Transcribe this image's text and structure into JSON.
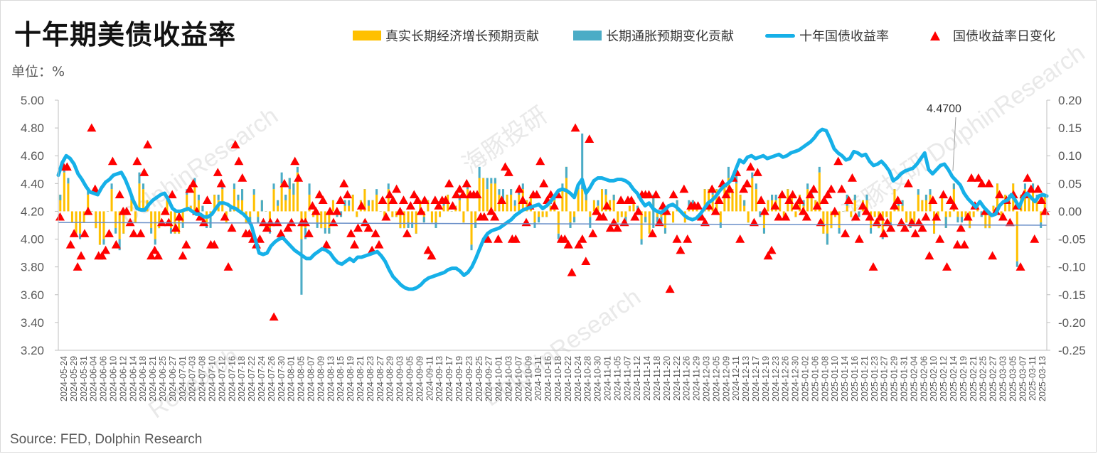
{
  "title": "十年期美债收益率",
  "unit": "单位：%",
  "source": "Source: FED, Dolphin Research",
  "colors": {
    "real": "#ffc000",
    "inflation": "#4bacc6",
    "yield": "#16b0e8",
    "marker": "#ff0000",
    "axis": "#595959"
  },
  "legend": {
    "real": "真实长期经济增长预期贡献",
    "inflation": "长期通胀预期变化贡献",
    "yield": "十年国债收益率",
    "change": "国债收益率日变化"
  },
  "callout": {
    "label": "4.4700",
    "date": "2025-02-14"
  },
  "chart_data": {
    "type": "bar",
    "left_axis": {
      "min": 3.2,
      "max": 5.0,
      "ticks": [
        "3.20",
        "3.40",
        "3.60",
        "3.80",
        "4.00",
        "4.20",
        "4.40",
        "4.60",
        "4.80",
        "5.00"
      ]
    },
    "right_axis": {
      "min": -0.25,
      "max": 0.2,
      "ticks": [
        "-0.25",
        "-0.20",
        "-0.15",
        "-0.10",
        "-0.05",
        "0.00",
        "0.05",
        "0.10",
        "0.15",
        "0.20"
      ]
    },
    "x_tick_labels": [
      "2024-05-24",
      "2024-05-29",
      "2024-05-31",
      "2024-06-04",
      "2024-06-06",
      "2024-06-10",
      "2024-06-12",
      "2024-06-14",
      "2024-06-18",
      "2024-06-21",
      "2024-06-25",
      "2024-06-27",
      "2024-07-01",
      "2024-07-03",
      "2024-07-08",
      "2024-07-10",
      "2024-07-12",
      "2024-07-16",
      "2024-07-18",
      "2024-07-22",
      "2024-07-24",
      "2024-07-26",
      "2024-07-30",
      "2024-08-01",
      "2024-08-05",
      "2024-08-07",
      "2024-08-09",
      "2024-08-13",
      "2024-08-15",
      "2024-08-19",
      "2024-08-21",
      "2024-08-23",
      "2024-08-27",
      "2024-08-29",
      "2024-09-03",
      "2024-09-05",
      "2024-09-09",
      "2024-09-11",
      "2024-09-13",
      "2024-09-17",
      "2024-09-19",
      "2024-09-23",
      "2024-09-25",
      "2024-09-27",
      "2024-10-01",
      "2024-10-03",
      "2024-10-07",
      "2024-10-09",
      "2024-10-11",
      "2024-10-16",
      "2024-10-18",
      "2024-10-22",
      "2024-10-24",
      "2024-10-28",
      "2024-10-30",
      "2024-11-01",
      "2024-11-05",
      "2024-11-07",
      "2024-11-12",
      "2024-11-14",
      "2024-11-18",
      "2024-11-20",
      "2024-11-22",
      "2024-11-26",
      "2024-11-29",
      "2024-12-03",
      "2024-12-05",
      "2024-12-09",
      "2024-12-11",
      "2024-12-13",
      "2024-12-17",
      "2024-12-19",
      "2024-12-23",
      "2024-12-26",
      "2024-12-30",
      "2025-01-02",
      "2025-01-06",
      "2025-01-08",
      "2025-01-10",
      "2025-01-14",
      "2025-01-16",
      "2025-01-21",
      "2025-01-23",
      "2025-01-27",
      "2025-01-29",
      "2025-01-31",
      "2025-02-04",
      "2025-02-06",
      "2025-02-10",
      "2025-02-12",
      "2025-02-14",
      "2025-02-19",
      "2025-02-21",
      "2025-02-25",
      "2025-02-27",
      "2025-03-03",
      "2025-03-05",
      "2025-03-07",
      "2025-03-11",
      "2025-03-13"
    ],
    "yield": [
      4.46,
      4.55,
      4.6,
      4.58,
      4.54,
      4.47,
      4.43,
      4.38,
      4.34,
      4.33,
      4.32,
      4.37,
      4.41,
      4.43,
      4.46,
      4.47,
      4.48,
      4.43,
      4.36,
      4.28,
      4.22,
      4.21,
      4.21,
      4.25,
      4.28,
      4.3,
      4.32,
      4.33,
      4.28,
      4.22,
      4.2,
      4.2,
      4.21,
      4.22,
      4.2,
      4.18,
      4.18,
      4.16,
      4.16,
      4.18,
      4.22,
      4.26,
      4.26,
      4.25,
      4.23,
      4.22,
      4.2,
      4.18,
      4.15,
      4.1,
      4.0,
      3.9,
      3.89,
      3.9,
      3.95,
      3.98,
      4.0,
      4.01,
      3.98,
      3.95,
      3.92,
      3.9,
      3.88,
      3.86,
      3.86,
      3.89,
      3.91,
      3.93,
      3.92,
      3.9,
      3.86,
      3.83,
      3.82,
      3.84,
      3.86,
      3.84,
      3.87,
      3.87,
      3.88,
      3.89,
      3.9,
      3.91,
      3.88,
      3.84,
      3.78,
      3.73,
      3.7,
      3.67,
      3.65,
      3.64,
      3.64,
      3.65,
      3.67,
      3.7,
      3.72,
      3.73,
      3.74,
      3.75,
      3.76,
      3.78,
      3.79,
      3.79,
      3.77,
      3.74,
      3.76,
      3.8,
      3.86,
      3.93,
      4.0,
      4.04,
      4.06,
      4.07,
      4.08,
      4.1,
      4.12,
      4.14,
      4.17,
      4.19,
      4.21,
      4.22,
      4.23,
      4.24,
      4.25,
      4.22,
      4.24,
      4.27,
      4.31,
      4.35,
      4.36,
      4.35,
      4.33,
      4.3,
      4.39,
      4.43,
      4.33,
      4.37,
      4.42,
      4.44,
      4.44,
      4.43,
      4.42,
      4.42,
      4.43,
      4.43,
      4.42,
      4.4,
      4.36,
      4.33,
      4.28,
      4.24,
      4.26,
      4.22,
      4.2,
      4.19,
      4.21,
      4.24,
      4.25,
      4.23,
      4.2,
      4.17,
      4.15,
      4.14,
      4.15,
      4.18,
      4.22,
      4.26,
      4.28,
      4.31,
      4.35,
      4.38,
      4.4,
      4.43,
      4.5,
      4.57,
      4.55,
      4.59,
      4.6,
      4.58,
      4.59,
      4.6,
      4.58,
      4.59,
      4.6,
      4.61,
      4.59,
      4.6,
      4.62,
      4.63,
      4.64,
      4.66,
      4.68,
      4.7,
      4.73,
      4.77,
      4.79,
      4.78,
      4.72,
      4.65,
      4.62,
      4.6,
      4.57,
      4.58,
      4.63,
      4.62,
      4.6,
      4.61,
      4.56,
      4.53,
      4.54,
      4.56,
      4.53,
      4.49,
      4.42,
      4.44,
      4.47,
      4.49,
      4.5,
      4.51,
      4.54,
      4.58,
      4.62,
      4.5,
      4.47,
      4.5,
      4.53,
      4.54,
      4.5,
      4.45,
      4.42,
      4.39,
      4.33,
      4.29,
      4.26,
      4.23,
      4.27,
      4.23,
      4.2,
      4.17,
      4.18,
      4.24,
      4.27,
      4.28,
      4.32,
      4.28,
      4.23,
      4.3,
      4.33,
      4.3,
      4.27,
      4.31,
      4.32,
      4.31
    ],
    "real_contrib": [
      0.03,
      0.07,
      0.05,
      -0.02,
      -0.04,
      -0.04,
      -0.02,
      0.03,
      0.0,
      -0.03,
      -0.06,
      -0.05,
      0.0,
      0.04,
      -0.03,
      -0.05,
      -0.04,
      0.0,
      0.02,
      -0.02,
      0.05,
      0.04,
      0.02,
      -0.03,
      -0.05,
      -0.03,
      0.0,
      0.02,
      -0.03,
      -0.04,
      -0.04,
      -0.02,
      0.03,
      0.01,
      0.05,
      0.02,
      0.01,
      -0.03,
      -0.01,
      0.03,
      0.02,
      0.04,
      -0.02,
      0.0,
      0.04,
      0.03,
      0.04,
      -0.02,
      -0.02,
      0.03,
      -0.01,
      0.02,
      0.0,
      -0.03,
      0.04,
      0.02,
      0.05,
      0.03,
      0.06,
      0.05,
      0.07,
      -0.05,
      -0.03,
      0.03,
      -0.01,
      -0.02,
      -0.03,
      -0.03,
      -0.04,
      0.02,
      -0.01,
      -0.01,
      0.02,
      0.01,
      0.03,
      -0.01,
      0.02,
      0.04,
      0.02,
      0.02,
      0.03,
      0.0,
      -0.01,
      0.04,
      -0.01,
      -0.01,
      -0.03,
      -0.03,
      -0.03,
      -0.02,
      -0.04,
      0.02,
      -0.02,
      0.02,
      -0.02,
      -0.03,
      -0.01,
      0.01,
      0.03,
      0.0,
      0.01,
      0.03,
      -0.02,
      0.04,
      -0.06,
      -0.03,
      0.06,
      0.06,
      0.04,
      0.05,
      0.06,
      0.03,
      0.02,
      0.03,
      0.04,
      0.01,
      0.03,
      0.04,
      0.02,
      0.03,
      -0.02,
      -0.02,
      -0.01,
      -0.01,
      0.01,
      0.02,
      -0.04,
      0.04,
      0.08,
      -0.03,
      -0.02,
      0.05,
      0.04,
      0.03,
      -0.01,
      0.02,
      0.01,
      0.04,
      0.03,
      0.02,
      0.03,
      -0.02,
      -0.01,
      -0.02,
      0.01,
      0.02,
      0.01,
      -0.05,
      -0.02,
      -0.04,
      0.03,
      -0.02,
      -0.01,
      -0.04,
      0.0,
      -0.02,
      0.02,
      0.0,
      -0.02,
      0.01,
      0.02,
      0.01,
      -0.01,
      0.04,
      0.04,
      0.03,
      0.04,
      -0.02,
      0.05,
      0.06,
      0.04,
      0.05,
      0.03,
      0.02,
      -0.02,
      0.06,
      0.04,
      -0.01,
      -0.04,
      0.02,
      0.03,
      0.02,
      0.03,
      -0.01,
      0.04,
      0.03,
      -0.01,
      0.03,
      0.02,
      0.04,
      0.03,
      0.02,
      0.07,
      -0.04,
      -0.06,
      -0.03,
      -0.01,
      -0.03,
      0.0,
      0.03,
      -0.01,
      0.03,
      -0.01,
      0.02,
      0.02,
      -0.03,
      -0.01,
      -0.03,
      -0.04,
      -0.01,
      -0.02,
      0.04,
      0.02,
      0.02,
      -0.02,
      -0.03,
      -0.02,
      0.03,
      0.02,
      0.03,
      0.03,
      -0.04,
      -0.01,
      0.03,
      -0.03,
      -0.01,
      0.05,
      -0.01,
      -0.02,
      -0.01,
      -0.03,
      -0.01,
      0.01,
      -0.01,
      -0.03,
      -0.03,
      0.01,
      0.05,
      -0.01,
      0.03,
      0.02,
      0.05,
      -0.09,
      0.03,
      0.04,
      0.03,
      0.05,
      0.02,
      -0.02,
      0.03
    ],
    "infl_contrib": [
      -0.01,
      0.01,
      0.01,
      0.0,
      0.0,
      -0.01,
      0.0,
      0.01,
      0.0,
      0.0,
      0.0,
      -0.01,
      0.0,
      0.01,
      -0.01,
      -0.02,
      0.0,
      0.0,
      0.01,
      0.0,
      0.02,
      0.01,
      0.0,
      -0.01,
      -0.01,
      0.0,
      0.0,
      0.0,
      -0.01,
      0.0,
      0.0,
      -0.01,
      0.01,
      0.0,
      0.01,
      0.01,
      -0.01,
      0.01,
      -0.02,
      0.0,
      0.01,
      0.01,
      0.0,
      0.01,
      0.01,
      -0.01,
      -0.02,
      0.0,
      0.01,
      0.01,
      -0.01,
      -0.02,
      0.0,
      -0.01,
      0.01,
      -0.01,
      0.02,
      -0.01,
      -0.02,
      -0.02,
      0.01,
      -0.1,
      -0.02,
      0.02,
      0.0,
      -0.01,
      0.0,
      -0.01,
      0.01,
      0.0,
      0.01,
      0.01,
      -0.01,
      0.01,
      0.0,
      0.0,
      0.0,
      0.0,
      -0.01,
      0.0,
      0.01,
      0.0,
      0.0,
      0.01,
      0.0,
      0.0,
      0.0,
      0.0,
      0.01,
      -0.01,
      0.0,
      0.0,
      0.01,
      0.0,
      0.0,
      0.01,
      0.0,
      0.01,
      0.0,
      0.0,
      0.0,
      -0.01,
      0.0,
      0.01,
      -0.01,
      0.01,
      0.02,
      0.0,
      0.02,
      0.01,
      -0.01,
      0.01,
      0.02,
      0.0,
      -0.01,
      0.01,
      0.01,
      0.01,
      0.0,
      0.0,
      -0.01,
      0.01,
      0.0,
      0.0,
      0.0,
      0.01,
      -0.01,
      0.01,
      -0.02,
      0.01,
      0.01,
      -0.01,
      0.1,
      -0.01,
      -0.02,
      0.0,
      0.01,
      0.0,
      0.01,
      0.0,
      -0.01,
      0.0,
      0.0,
      0.01,
      0.0,
      0.0,
      -0.01,
      -0.01,
      0.01,
      0.0,
      -0.06,
      0.01,
      -0.01,
      0.01,
      0.0,
      0.0,
      -0.01,
      0.0,
      0.0,
      0.01,
      -0.01,
      0.0,
      0.01,
      0.0,
      0.0,
      0.01,
      0.0,
      -0.01,
      0.0,
      0.02,
      0.0,
      0.02,
      0.0,
      -0.01,
      0.0,
      0.01,
      0.01,
      0.01,
      0.01,
      0.0,
      -0.01,
      0.01,
      0.0,
      0.0,
      0.0,
      0.0,
      0.0,
      0.0,
      -0.01,
      0.01,
      0.01,
      0.0,
      0.01,
      0.0,
      0.02,
      0.0,
      0.0,
      -0.01,
      0.0,
      -0.02,
      0.0,
      -0.01,
      0.01,
      0.0,
      0.01,
      -0.01,
      0.0,
      0.0,
      -0.01,
      0.0,
      -0.01,
      0.0,
      -0.01,
      -0.01,
      0.0,
      0.01,
      0.0,
      0.01,
      0.0,
      -0.01,
      0.01,
      0.0,
      0.0,
      0.0,
      0.02,
      0.0,
      -0.01,
      -0.01,
      0.01,
      0.0,
      0.0,
      0.0,
      0.0,
      0.01,
      0.0,
      0.0,
      0.0,
      0.0,
      0.0,
      0.0,
      0.01,
      0.0,
      -0.01,
      0.0,
      0.01,
      0.0,
      -0.01,
      0.01,
      -0.01,
      0.0,
      0.01,
      -0.01,
      0.0,
      -0.01,
      0.01,
      0.0,
      0.0
    ],
    "daily_change": [
      -0.01,
      0.08,
      0.08,
      -0.06,
      -0.04,
      -0.1,
      -0.08,
      -0.04,
      0.0,
      0.15,
      0.04,
      -0.08,
      -0.08,
      -0.07,
      -0.04,
      0.09,
      -0.06,
      0.03,
      0.0,
      0.0,
      -0.02,
      -0.04,
      0.09,
      -0.04,
      0.07,
      0.12,
      -0.08,
      -0.07,
      -0.08,
      -0.02,
      0.0,
      -0.02,
      0.03,
      -0.03,
      -0.01,
      -0.08,
      -0.06,
      0.04,
      0.05,
      0.0,
      -0.01,
      -0.02,
      0.02,
      -0.06,
      -0.06,
      0.07,
      0.05,
      -0.01,
      -0.1,
      -0.03,
      0.12,
      0.09,
      0.06,
      -0.04,
      -0.04,
      -0.05,
      -0.06,
      -0.05,
      -0.02,
      -0.03,
      -0.02,
      -0.19,
      -0.02,
      -0.04,
      0.05,
      -0.03,
      -0.02,
      0.09,
      0.06,
      -0.02,
      -0.02,
      -0.04,
      0.01,
      0.0,
      0.03,
      0.02,
      -0.06,
      0.0,
      -0.02,
      0.0,
      0.02,
      0.05,
      0.03,
      -0.04,
      -0.06,
      -0.03,
      0.01,
      -0.02,
      -0.03,
      -0.07,
      -0.04,
      -0.06,
      0.02,
      -0.01,
      0.03,
      0.02,
      0.04,
      0.0,
      0.02,
      -0.04,
      0.01,
      0.03,
      0.02,
      0.0,
      0.02,
      -0.07,
      -0.08,
      0.02,
      0.01,
      0.02,
      0.02,
      0.05,
      0.01,
      0.03,
      0.04,
      0.03,
      0.05,
      0.03,
      0.03,
      0.03,
      -0.01,
      -0.01,
      -0.05,
      0.0,
      -0.01,
      -0.05,
      0.02,
      0.08,
      0.07,
      -0.05,
      -0.05,
      0.04,
      0.02,
      -0.02,
      0.01,
      0.03,
      0.03,
      0.09,
      0.05,
      0.02,
      0.03,
      0.01,
      0.03,
      -0.05,
      -0.05,
      -0.06,
      -0.11,
      0.15,
      -0.06,
      -0.05,
      -0.09,
      0.13,
      -0.04,
      0.0,
      -0.01,
      -0.01,
      0.01,
      -0.03,
      -0.02,
      -0.03,
      0.02,
      -0.02,
      0.02,
      0.02,
      -0.01,
      0.0,
      0.03,
      0.03,
      0.03,
      -0.04,
      0.03,
      -0.02,
      0.01,
      0.0,
      -0.14,
      0.03,
      -0.05,
      -0.07,
      0.04,
      -0.05,
      0.01,
      0.01,
      0.01,
      -0.01,
      -0.02,
      0.01,
      0.04,
      0.0,
      0.02,
      0.05,
      0.03,
      0.04,
      0.06,
      0.07,
      -0.05,
      0.04,
      0.05,
      0.08,
      -0.02,
      0.07,
      0.02,
      0.0,
      -0.08,
      -0.07,
      0.01,
      -0.01,
      0.03,
      -0.01,
      0.02,
      0.03,
      0.01,
      0.02,
      0.0,
      -0.01,
      0.03,
      0.04,
      0.01,
      -0.02,
      0.02,
      0.03,
      0.04,
      0.0,
      0.09,
      0.04,
      -0.04,
      0.02,
      0.06,
      -0.01,
      -0.05,
      0.01,
      0.0,
      -0.01,
      -0.1,
      -0.02,
      -0.01,
      -0.04,
      -0.02,
      -0.03,
      0.01,
      0.02,
      -0.02,
      -0.03,
      0.05,
      -0.02,
      -0.04,
      -0.02,
      -0.03,
      -0.01,
      -0.08,
      0.02,
      -0.01,
      -0.05,
      0.03,
      -0.1,
      0.02,
      0.01,
      -0.06,
      -0.03,
      -0.06,
      -0.01,
      0.06,
      0.01,
      0.06,
      0.05,
      0.0,
      0.05,
      -0.08,
      0.0,
      0.03,
      -0.01,
      0.02,
      -0.02,
      0.03,
      0.01,
      -0.1,
      0.03,
      0.06,
      0.04,
      -0.05,
      0.04,
      0.02,
      0.0
    ]
  }
}
